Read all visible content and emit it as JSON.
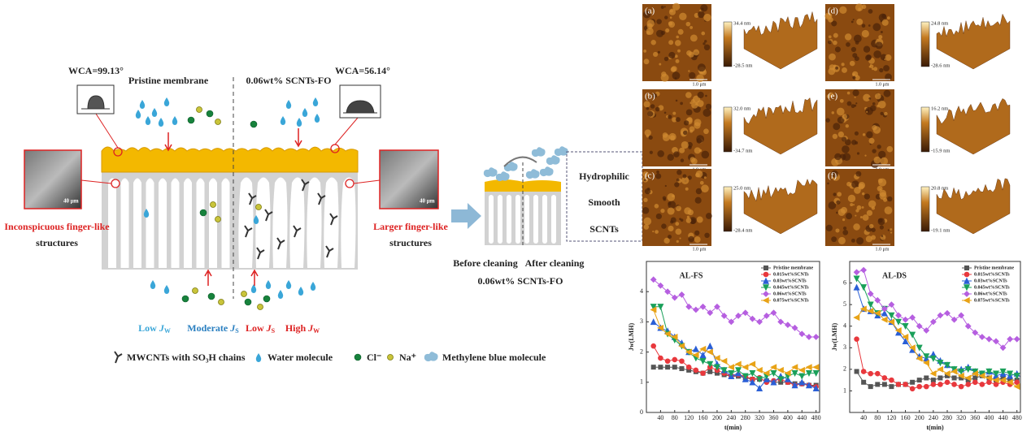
{
  "diagram": {
    "wca_left": "WCA=99.13°",
    "wca_right": "WCA=56.14°",
    "pristine_label": "Pristine membrane",
    "modified_label": "0.06wt% SCNTs-FO",
    "left_structure": [
      "Inconspicuous finger-like",
      "structures"
    ],
    "right_structure": [
      "Larger finger-like",
      "structures"
    ],
    "scale_left": "40 μm",
    "scale_right": "40 μm",
    "fluxes": [
      {
        "prefix": "Low ",
        "symbol": "J",
        "subscript": "W"
      },
      {
        "prefix": "Moderate ",
        "symbol": "J",
        "subscript": "S"
      },
      {
        "prefix": "Low ",
        "symbol": "J",
        "subscript": "S"
      },
      {
        "prefix": "High ",
        "symbol": "J",
        "subscript": "W"
      }
    ],
    "legend": [
      "MWCNTs with SO₃H chains",
      "Water molecule",
      "Cl⁻",
      "Na⁺",
      "Methylene blue molecule"
    ],
    "cleaning": {
      "properties": [
        "Hydrophilic",
        "Smooth",
        "SCNTs"
      ],
      "before": "Before cleaning",
      "after": "After cleaning",
      "caption": "0.06wt% SCNTs-FO"
    }
  },
  "afm": [
    {
      "label": "(a)",
      "max": "34.4 nm",
      "min": "-28.5 nm",
      "scale": "1.0 μm"
    },
    {
      "label": "(b)",
      "max": "32.0 nm",
      "min": "-34.7 nm",
      "scale": "1.0 μm"
    },
    {
      "label": "(c)",
      "max": "25.0 nm",
      "min": "-28.4 nm",
      "scale": "1.0 μm"
    },
    {
      "label": "(d)",
      "max": "24.8 nm",
      "min": "-28.6 nm",
      "scale": "1.0 μm"
    },
    {
      "label": "(e)",
      "max": "16.2 nm",
      "min": "-15.9 nm",
      "scale": "1.0 μm"
    },
    {
      "label": "(f)",
      "max": "20.8 nm",
      "min": "-19.1 nm",
      "scale": "1.0 μm"
    }
  ],
  "chart_data": [
    {
      "type": "line",
      "title": "AL-FS",
      "x_label": "t(min)",
      "y_label": "Jw(LMH)",
      "legend": "upper right",
      "x": [
        20,
        40,
        60,
        80,
        100,
        120,
        140,
        160,
        180,
        200,
        220,
        240,
        260,
        280,
        300,
        320,
        340,
        360,
        380,
        400,
        420,
        440,
        460,
        480
      ],
      "xlim": [
        0,
        490
      ],
      "xticks": [
        40,
        80,
        120,
        160,
        200,
        240,
        280,
        320,
        360,
        400,
        440,
        480
      ],
      "ylim": [
        0,
        5
      ],
      "yticks": [
        0,
        1,
        2,
        3,
        4
      ],
      "series": [
        {
          "name": "Pristine membrane",
          "color": "#555555",
          "marker": "square",
          "values": [
            1.5,
            1.5,
            1.5,
            1.5,
            1.45,
            1.4,
            1.35,
            1.3,
            1.35,
            1.3,
            1.25,
            1.2,
            1.2,
            1.15,
            1.1,
            1.1,
            1.05,
            1.0,
            1.0,
            1.0,
            0.95,
            0.95,
            0.9,
            0.9
          ]
        },
        {
          "name": "0.015wt%SCNTs",
          "color": "#e8383d",
          "marker": "circle",
          "values": [
            2.2,
            1.8,
            1.7,
            1.75,
            1.7,
            1.5,
            1.4,
            1.3,
            1.5,
            1.4,
            1.3,
            1.2,
            1.25,
            1.2,
            1.1,
            1.15,
            1.0,
            1.05,
            1.1,
            1.0,
            0.9,
            0.95,
            0.9,
            0.85
          ]
        },
        {
          "name": "0.03wt%SCNTs",
          "color": "#2a5fd6",
          "marker": "triangle-up",
          "values": [
            3.0,
            2.8,
            2.7,
            2.5,
            2.3,
            2.0,
            2.1,
            1.9,
            2.2,
            1.6,
            1.4,
            1.2,
            1.3,
            1.1,
            1.0,
            0.8,
            1.1,
            1.0,
            1.2,
            1.1,
            0.9,
            1.0,
            0.9,
            0.8
          ]
        },
        {
          "name": "0.045wt%SCNTs",
          "color": "#1aa05a",
          "marker": "triangle-down",
          "values": [
            3.5,
            3.5,
            2.6,
            2.4,
            2.2,
            2.0,
            1.8,
            1.7,
            1.6,
            1.5,
            1.4,
            1.3,
            1.4,
            1.2,
            1.3,
            1.1,
            1.2,
            1.3,
            1.1,
            1.2,
            1.3,
            1.2,
            1.3,
            1.3
          ]
        },
        {
          "name": "0.06wt%SCNTs",
          "color": "#b65fe0",
          "marker": "diamond",
          "values": [
            4.4,
            4.2,
            4.0,
            3.8,
            3.9,
            3.5,
            3.4,
            3.5,
            3.3,
            3.5,
            3.2,
            3.0,
            3.2,
            3.3,
            3.1,
            3.0,
            3.2,
            3.3,
            3.0,
            2.9,
            2.8,
            2.6,
            2.5,
            2.5
          ]
        },
        {
          "name": "0.075wt%SCNTs",
          "color": "#e8a317",
          "marker": "triangle-left",
          "values": [
            3.4,
            2.8,
            2.6,
            2.5,
            2.2,
            2.0,
            1.9,
            2.1,
            2.0,
            1.8,
            1.7,
            1.5,
            1.6,
            1.5,
            1.6,
            1.4,
            1.3,
            1.5,
            1.4,
            1.3,
            1.5,
            1.4,
            1.5,
            1.5
          ]
        }
      ]
    },
    {
      "type": "line",
      "title": "AL-DS",
      "x_label": "t(min)",
      "y_label": "Jw(LMH)",
      "legend": "upper right",
      "x": [
        20,
        40,
        60,
        80,
        100,
        120,
        140,
        160,
        180,
        200,
        220,
        240,
        260,
        280,
        300,
        320,
        340,
        360,
        380,
        400,
        420,
        440,
        460,
        480
      ],
      "xlim": [
        0,
        490
      ],
      "xticks": [
        40,
        80,
        120,
        160,
        200,
        240,
        280,
        320,
        360,
        400,
        440,
        480
      ],
      "ylim": [
        0,
        7
      ],
      "yticks": [
        1,
        2,
        3,
        4,
        5,
        6
      ],
      "series": [
        {
          "name": "Pristine membrane",
          "color": "#555555",
          "marker": "square",
          "values": [
            1.9,
            1.4,
            1.2,
            1.3,
            1.3,
            1.2,
            1.3,
            1.3,
            1.4,
            1.5,
            1.6,
            1.5,
            1.6,
            1.7,
            1.6,
            1.6,
            1.5,
            1.6,
            1.7,
            1.6,
            1.5,
            1.6,
            1.5,
            1.5
          ]
        },
        {
          "name": "0.015wt%SCNTs",
          "color": "#e8383d",
          "marker": "circle",
          "values": [
            3.4,
            1.9,
            1.8,
            1.8,
            1.6,
            1.5,
            1.3,
            1.3,
            1.1,
            1.2,
            1.2,
            1.3,
            1.3,
            1.4,
            1.3,
            1.2,
            1.3,
            1.4,
            1.3,
            1.4,
            1.3,
            1.4,
            1.3,
            1.4
          ]
        },
        {
          "name": "0.03wt%SCNTs",
          "color": "#2a5fd6",
          "marker": "triangle-up",
          "values": [
            5.8,
            4.8,
            4.7,
            4.5,
            4.6,
            4.2,
            3.7,
            3.3,
            2.9,
            2.6,
            2.5,
            2.7,
            2.4,
            2.2,
            2.0,
            2.0,
            2.1,
            1.9,
            1.8,
            1.9,
            1.7,
            1.8,
            1.7,
            1.8
          ]
        },
        {
          "name": "0.045wt%SCNTs",
          "color": "#1aa05a",
          "marker": "triangle-down",
          "values": [
            6.2,
            5.8,
            5.0,
            4.6,
            4.8,
            4.5,
            4.2,
            4.0,
            3.6,
            3.0,
            2.6,
            2.5,
            2.3,
            2.2,
            2.0,
            1.9,
            2.0,
            1.9,
            1.8,
            1.9,
            1.8,
            1.9,
            1.8,
            1.7
          ]
        },
        {
          "name": "0.06wt%SCNTs",
          "color": "#b65fe0",
          "marker": "diamond",
          "values": [
            6.5,
            6.6,
            5.5,
            5.2,
            4.8,
            5.0,
            4.5,
            4.3,
            4.4,
            4.0,
            3.8,
            4.2,
            4.5,
            4.6,
            4.3,
            4.5,
            4.0,
            3.7,
            3.5,
            3.4,
            3.3,
            3.0,
            3.4,
            3.4
          ]
        },
        {
          "name": "0.075wt%SCNTs",
          "color": "#e8a317",
          "marker": "triangle-left",
          "values": [
            4.4,
            4.8,
            4.7,
            4.6,
            4.3,
            4.2,
            3.8,
            3.5,
            3.0,
            2.5,
            2.3,
            1.8,
            2.0,
            1.8,
            1.9,
            1.7,
            1.6,
            1.8,
            1.7,
            1.6,
            1.5,
            1.5,
            1.4,
            1.2
          ]
        }
      ]
    }
  ]
}
